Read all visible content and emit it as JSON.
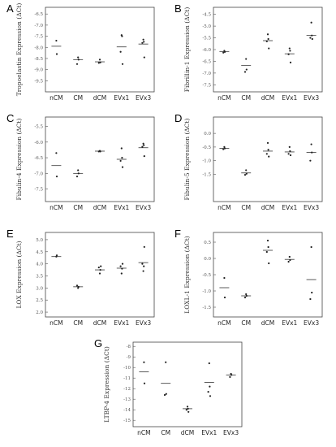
{
  "categories": [
    "nCM",
    "CM",
    "dCM",
    "EVx1",
    "EVx3"
  ],
  "chart_data": [
    {
      "letter": "A",
      "type": "scatter",
      "ylabel": "Tropoelastin Expression (ΔCt)",
      "yticks": [
        "-6.5",
        "-7.0",
        "-7.5",
        "-8.0",
        "-8.5",
        "-9.0",
        "-9.5"
      ],
      "tick_values": [
        -6.5,
        -7.0,
        -7.5,
        -8.0,
        -8.5,
        -9.0,
        -9.5
      ],
      "ylim": [
        -10.0,
        -6.2
      ],
      "inverted": true,
      "series": [
        {
          "category": "nCM",
          "points": [
            -7.7,
            -8.3
          ],
          "mean": -7.95
        },
        {
          "category": "CM",
          "points": [
            -8.45,
            -8.55,
            -8.75
          ],
          "mean": -8.55
        },
        {
          "category": "dCM",
          "points": [
            -8.55,
            -8.68,
            -8.7
          ],
          "mean": -8.65
        },
        {
          "category": "EVx1",
          "points": [
            -7.45,
            -7.5,
            -8.2,
            -8.75
          ],
          "mean": -7.98
        },
        {
          "category": "EVx3",
          "points": [
            -7.65,
            -7.75,
            -7.8,
            -8.45
          ],
          "mean": -7.85
        }
      ]
    },
    {
      "letter": "B",
      "type": "scatter",
      "ylabel": "Fibrillin-1 Expression (ΔCt)",
      "yticks": [
        "-4.5",
        "-5.0",
        "-5.5",
        "-6.0",
        "-6.5",
        "-7.0",
        "-7.5"
      ],
      "tick_values": [
        -4.5,
        -5.0,
        -5.5,
        -6.0,
        -6.5,
        -7.0,
        -7.5
      ],
      "ylim": [
        -7.8,
        -4.2
      ],
      "inverted": true,
      "series": [
        {
          "category": "nCM",
          "points": [
            -6.05,
            -6.1,
            -6.13
          ],
          "mean": -6.08
        },
        {
          "category": "CM",
          "points": [
            -6.4,
            -6.85,
            -6.95
          ],
          "mean": -6.68
        },
        {
          "category": "dCM",
          "points": [
            -5.35,
            -5.55,
            -5.65,
            -5.95
          ],
          "mean": -5.62
        },
        {
          "category": "EVx1",
          "points": [
            -5.95,
            -6.05,
            -6.2,
            -6.55
          ],
          "mean": -6.18
        },
        {
          "category": "EVx3",
          "points": [
            -4.85,
            -5.4,
            -5.5,
            -5.55
          ],
          "mean": -5.4
        }
      ]
    },
    {
      "letter": "C",
      "type": "scatter",
      "ylabel": "Fibulin-4 Expression (ΔCt)",
      "yticks": [
        "-5.5",
        "-6.0",
        "-6.5",
        "-7.0",
        "-7.5"
      ],
      "tick_values": [
        -5.5,
        -6.0,
        -6.5,
        -7.0,
        -7.5
      ],
      "ylim": [
        -7.9,
        -5.2
      ],
      "inverted": true,
      "series": [
        {
          "category": "nCM",
          "points": [
            -6.35,
            -7.1
          ],
          "mean": -6.75
        },
        {
          "category": "CM",
          "points": [
            -6.9,
            -7.0,
            -7.1
          ],
          "mean": -7.0
        },
        {
          "category": "dCM",
          "points": [
            -6.28,
            -6.3,
            -6.3
          ],
          "mean": -6.29
        },
        {
          "category": "EVx1",
          "points": [
            -6.2,
            -6.5,
            -6.6,
            -6.8
          ],
          "mean": -6.55
        },
        {
          "category": "EVx3",
          "points": [
            -6.05,
            -6.1,
            -6.15,
            -6.45
          ],
          "mean": -6.18
        }
      ]
    },
    {
      "letter": "D",
      "type": "scatter",
      "ylabel": "Fibulin-5 Expression (ΔCt)",
      "yticks": [
        "0.0",
        "-0.5",
        "-1.0",
        "-1.5"
      ],
      "tick_values": [
        0.0,
        -0.5,
        -1.0,
        -1.5
      ],
      "ylim": [
        -2.5,
        0.6
      ],
      "inverted": false,
      "series": [
        {
          "category": "nCM",
          "points": [
            -0.5,
            -0.55,
            -0.58
          ],
          "mean": -0.55
        },
        {
          "category": "CM",
          "points": [
            -1.35,
            -1.48,
            -1.52
          ],
          "mean": -1.45
        },
        {
          "category": "dCM",
          "points": [
            -0.35,
            -0.6,
            -0.75,
            -0.85
          ],
          "mean": -0.65
        },
        {
          "category": "EVx1",
          "points": [
            -0.5,
            -0.65,
            -0.75,
            -0.8
          ],
          "mean": -0.68
        },
        {
          "category": "EVx3",
          "points": [
            -0.4,
            -0.7,
            -1.0
          ],
          "mean": -0.7
        }
      ]
    },
    {
      "letter": "E",
      "type": "scatter",
      "ylabel": "LOX Expression (ΔCt)",
      "yticks": [
        "5.0",
        "4.5",
        "4.0",
        "3.5",
        "3.0",
        "2.5",
        "2.0"
      ],
      "tick_values": [
        5.0,
        4.5,
        4.0,
        3.5,
        3.0,
        2.5,
        2.0
      ],
      "ylim": [
        1.8,
        5.3
      ],
      "inverted": false,
      "series": [
        {
          "category": "nCM",
          "points": [
            4.3,
            4.35
          ],
          "mean": 4.3
        },
        {
          "category": "CM",
          "points": [
            3.0,
            3.05,
            3.1
          ],
          "mean": 3.05
        },
        {
          "category": "dCM",
          "points": [
            3.6,
            3.75,
            3.85,
            3.9
          ],
          "mean": 3.75
        },
        {
          "category": "EVx1",
          "points": [
            3.6,
            3.8,
            3.9,
            4.0
          ],
          "mean": 3.82
        },
        {
          "category": "EVx3",
          "points": [
            3.7,
            3.9,
            4.0,
            4.7
          ],
          "mean": 4.05
        }
      ]
    },
    {
      "letter": "F",
      "type": "scatter",
      "ylabel": "LOXL-1 Expression (ΔCt)",
      "yticks": [
        "0.5",
        "0.0",
        "-0.5",
        "-1.0",
        "-1.5"
      ],
      "tick_values": [
        0.5,
        0.0,
        -0.5,
        -1.0,
        -1.5
      ],
      "ylim": [
        -1.8,
        0.8
      ],
      "inverted": false,
      "series": [
        {
          "category": "nCM",
          "points": [
            -0.6,
            -1.2
          ],
          "mean": -0.9
        },
        {
          "category": "CM",
          "points": [
            -1.1,
            -1.15,
            -1.2
          ],
          "mean": -1.15
        },
        {
          "category": "dCM",
          "points": [
            0.55,
            0.35,
            0.2,
            -0.15
          ],
          "mean": 0.25
        },
        {
          "category": "EVx1",
          "points": [
            0.05,
            -0.05,
            -0.1
          ],
          "mean": -0.03
        },
        {
          "category": "EVx3",
          "points": [
            0.35,
            -1.05,
            -1.25
          ],
          "mean": -0.65
        }
      ]
    },
    {
      "letter": "G",
      "type": "scatter",
      "ylabel": "LTBP-4 Expression (ΔCt)",
      "yticks": [
        "-8",
        "-9",
        "-10",
        "-11",
        "-12",
        "-13",
        "-14",
        "-15"
      ],
      "tick_values": [
        -8,
        -9,
        -10,
        -11,
        -12,
        -13,
        -14,
        -15
      ],
      "ylim": [
        -15.6,
        -7.6
      ],
      "inverted": false,
      "series": [
        {
          "category": "nCM",
          "points": [
            -9.5,
            -11.5
          ],
          "mean": -10.4
        },
        {
          "category": "CM",
          "points": [
            -9.5,
            -12.5,
            -12.6
          ],
          "mean": -11.5
        },
        {
          "category": "dCM",
          "points": [
            -13.7,
            -13.9,
            -14.0,
            -14.2
          ],
          "mean": -13.9
        },
        {
          "category": "EVx1",
          "points": [
            -9.6,
            -11.8,
            -12.3,
            -12.7
          ],
          "mean": -11.4
        },
        {
          "category": "EVx3",
          "points": [
            -10.6,
            -10.7,
            -10.9
          ],
          "mean": -10.7
        }
      ]
    }
  ]
}
